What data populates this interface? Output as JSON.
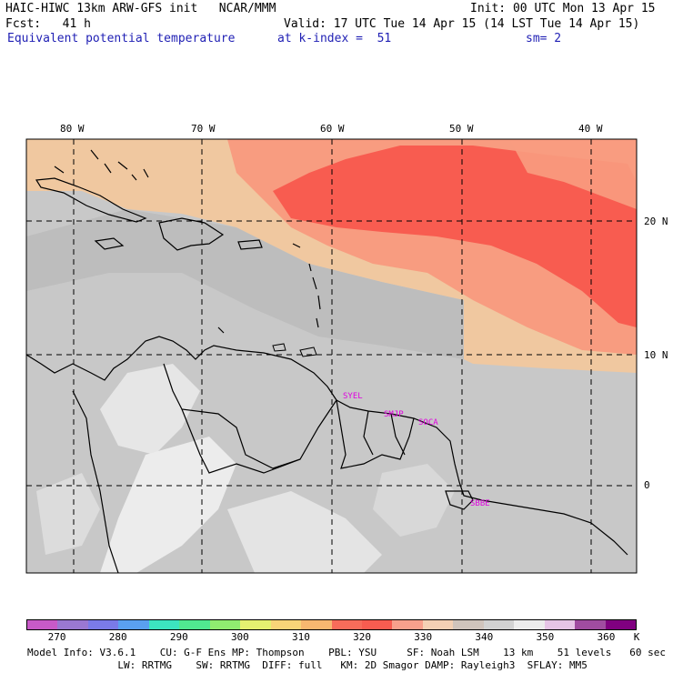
{
  "header": {
    "line1_left": "HAIC-HIWC 13km ARW-GFS init   NCAR/MMM",
    "line1_right": "Init: 00 UTC Mon 13 Apr 15",
    "line2_left": "Fcst:   41 h",
    "line2_right": "Valid: 17 UTC Tue 14 Apr 15 (14 LST Tue 14 Apr 15)",
    "line3_field": "Equivalent potential temperature",
    "line3_level": "at k-index =  51",
    "line3_smooth": "sm= 2"
  },
  "map": {
    "lon_labels": [
      "80 W",
      "70 W",
      "60 W",
      "50 W",
      "40 W"
    ],
    "lat_labels": [
      "20 N",
      "10 N",
      "0"
    ],
    "stations": [
      "SYEL",
      "SMJP",
      "SOCA",
      "SBBE"
    ],
    "colors": {
      "land_grey": "#c8c8c8",
      "warm_peach": "#f0c8a0",
      "salmon": "#f89c80",
      "red_orange": "#f85c50"
    }
  },
  "colorbar": {
    "labels": [
      "270",
      "280",
      "290",
      "300",
      "310",
      "320",
      "330",
      "340",
      "350",
      "360",
      "K"
    ],
    "colors": [
      "#c85ac8",
      "#9a78d2",
      "#7a7ae8",
      "#5aa0f0",
      "#3ce4c0",
      "#50e890",
      "#90ec70",
      "#e4f070",
      "#f8d478",
      "#f8b870",
      "#f86c5a",
      "#f85c50",
      "#f8a08c",
      "#f4d0b4",
      "#d0c4bc",
      "#d2d2d2",
      "#ececec",
      "#e6c4e6",
      "#a04ca0",
      "#800080"
    ]
  },
  "footer": {
    "line1": "Model Info: V3.6.1    CU: G-F Ens MP: Thompson    PBL: YSU     SF: Noah LSM    13 km    51 levels   60 sec",
    "line2": "               LW: RRTMG    SW: RRTMG  DIFF: full   KM: 2D Smagor DAMP: Rayleigh3  SFLAY: MM5"
  }
}
